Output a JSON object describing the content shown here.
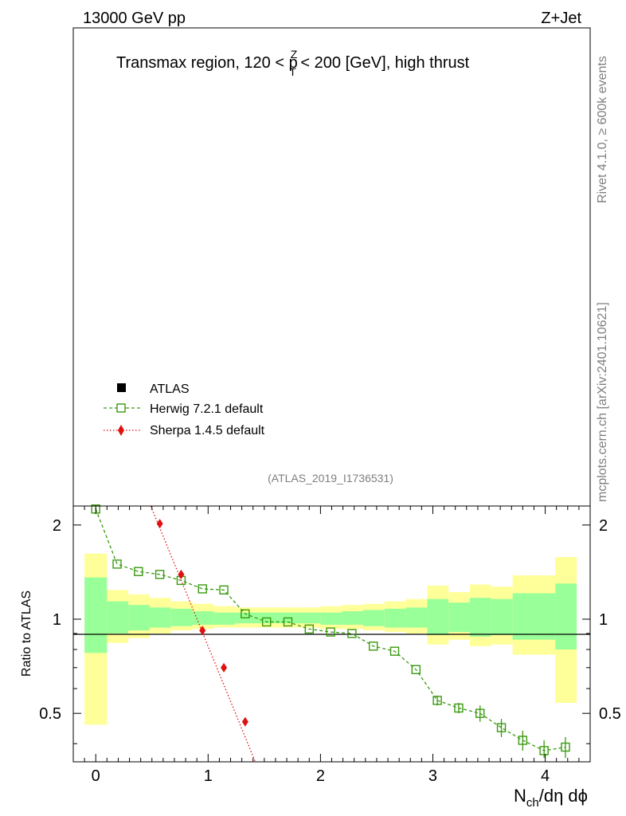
{
  "header": {
    "left_label": "13000 GeV pp",
    "right_label": "Z+Jet"
  },
  "side_labels": {
    "rivet": "Rivet 4.1.0, ≥ 600k events",
    "mcplots": "mcplots.cern.ch [arXiv:2401.10621]"
  },
  "chart_data": {
    "type": "line",
    "title_parts": {
      "before": "Transmax region, 120 < p",
      "sup": "Z",
      "sub": "T",
      "after": " < 200 [GeV], high thrust"
    },
    "analysis_id": "(ATLAS_2019_I1736531)",
    "legend": [
      {
        "name": "ATLAS",
        "marker": "square-filled",
        "color": "#000000"
      },
      {
        "name": "Herwig 7.2.1 default",
        "marker": "square-open",
        "color": "#3a9a10",
        "dash": "dashed"
      },
      {
        "name": "Sherpa 1.4.5 default",
        "marker": "diamond",
        "color": "#e01010",
        "dash": "dotted"
      }
    ],
    "ratio": {
      "ylabel": "Ratio to ATLAS",
      "xlabel": {
        "main": "N",
        "sub": "ch",
        "rest": "/dη dϕ"
      },
      "xlim": [
        -0.2,
        4.4
      ],
      "ylim": [
        0.35,
        2.3
      ],
      "yscale": "log",
      "xticks": [
        "0",
        "1",
        "2",
        "3",
        "4"
      ],
      "yticks": [
        "0.5",
        "1",
        "2"
      ],
      "bins": [
        -0.1,
        0.1,
        0.29,
        0.48,
        0.67,
        0.86,
        1.05,
        1.24,
        1.43,
        1.62,
        1.81,
        2.0,
        2.19,
        2.38,
        2.57,
        2.76,
        2.95,
        3.14,
        3.33,
        3.52,
        3.71,
        3.9,
        4.09,
        4.28
      ],
      "band_yellow": [
        [
          0.46,
          1.62
        ],
        [
          0.84,
          1.24
        ],
        [
          0.87,
          1.2
        ],
        [
          0.9,
          1.17
        ],
        [
          0.92,
          1.14
        ],
        [
          0.93,
          1.12
        ],
        [
          0.94,
          1.1
        ],
        [
          0.94,
          1.09
        ],
        [
          0.94,
          1.09
        ],
        [
          0.94,
          1.09
        ],
        [
          0.94,
          1.09
        ],
        [
          0.93,
          1.1
        ],
        [
          0.93,
          1.11
        ],
        [
          0.92,
          1.12
        ],
        [
          0.91,
          1.14
        ],
        [
          0.9,
          1.16
        ],
        [
          0.83,
          1.28
        ],
        [
          0.86,
          1.22
        ],
        [
          0.82,
          1.29
        ],
        [
          0.83,
          1.27
        ],
        [
          0.77,
          1.38
        ],
        [
          0.77,
          1.38
        ],
        [
          0.54,
          1.58
        ]
      ],
      "band_green": [
        [
          0.78,
          1.36
        ],
        [
          0.9,
          1.14
        ],
        [
          0.92,
          1.11
        ],
        [
          0.94,
          1.09
        ],
        [
          0.95,
          1.08
        ],
        [
          0.96,
          1.06
        ],
        [
          0.96,
          1.05
        ],
        [
          0.97,
          1.05
        ],
        [
          0.97,
          1.05
        ],
        [
          0.97,
          1.05
        ],
        [
          0.97,
          1.05
        ],
        [
          0.96,
          1.05
        ],
        [
          0.96,
          1.06
        ],
        [
          0.95,
          1.07
        ],
        [
          0.94,
          1.08
        ],
        [
          0.94,
          1.09
        ],
        [
          0.89,
          1.16
        ],
        [
          0.91,
          1.13
        ],
        [
          0.88,
          1.17
        ],
        [
          0.89,
          1.16
        ],
        [
          0.86,
          1.21
        ],
        [
          0.86,
          1.21
        ],
        [
          0.8,
          1.3
        ]
      ],
      "herwig": {
        "x": [
          0.0,
          0.19,
          0.38,
          0.57,
          0.76,
          0.95,
          1.14,
          1.33,
          1.52,
          1.71,
          1.9,
          2.09,
          2.28,
          2.47,
          2.66,
          2.85,
          3.04,
          3.23,
          3.42,
          3.61,
          3.8,
          3.99,
          4.18
        ],
        "y": [
          2.25,
          1.5,
          1.42,
          1.39,
          1.33,
          1.25,
          1.24,
          1.04,
          0.98,
          0.98,
          0.93,
          0.91,
          0.9,
          0.82,
          0.79,
          0.69,
          0.55,
          0.52,
          0.5,
          0.45,
          0.41,
          0.38,
          0.39
        ],
        "err": [
          0.02,
          0.01,
          0.01,
          0.01,
          0.01,
          0.01,
          0.01,
          0.01,
          0.01,
          0.01,
          0.01,
          0.01,
          0.01,
          0.01,
          0.01,
          0.01,
          0.02,
          0.02,
          0.03,
          0.03,
          0.03,
          0.03,
          0.03
        ]
      },
      "sherpa": {
        "x": [
          0.57,
          0.76,
          0.95,
          1.14,
          1.33
        ],
        "y": [
          2.02,
          1.39,
          0.92,
          0.7,
          0.47
        ],
        "line_x": [
          0.49,
          1.42
        ],
        "line_y": [
          2.3,
          0.35
        ]
      }
    }
  }
}
